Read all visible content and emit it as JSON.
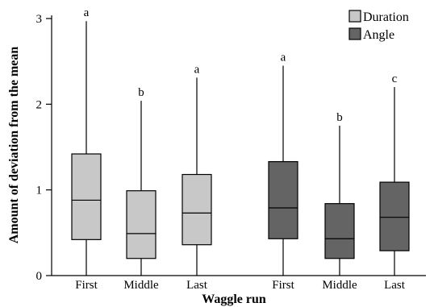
{
  "chart_data": {
    "type": "box",
    "xlabel": "Waggle run",
    "ylabel": "Amount of deviation from the mean",
    "ylim": [
      0,
      3
    ],
    "yticks": [
      0,
      1,
      2,
      3
    ],
    "legend_position": "top-right",
    "colors": {
      "Duration": "#c8c8c8",
      "Angle": "#646464"
    },
    "series": [
      {
        "name": "Duration",
        "boxes": [
          {
            "category": "First",
            "min": 0.0,
            "q1": 0.42,
            "median": 0.88,
            "q3": 1.42,
            "max": 2.97,
            "letter": "a"
          },
          {
            "category": "Middle",
            "min": 0.0,
            "q1": 0.2,
            "median": 0.49,
            "q3": 0.99,
            "max": 2.04,
            "letter": "b"
          },
          {
            "category": "Last",
            "min": 0.0,
            "q1": 0.36,
            "median": 0.73,
            "q3": 1.18,
            "max": 2.31,
            "letter": "a"
          }
        ]
      },
      {
        "name": "Angle",
        "boxes": [
          {
            "category": "First",
            "min": 0.0,
            "q1": 0.43,
            "median": 0.79,
            "q3": 1.33,
            "max": 2.45,
            "letter": "a"
          },
          {
            "category": "Middle",
            "min": 0.0,
            "q1": 0.2,
            "median": 0.43,
            "q3": 0.84,
            "max": 1.75,
            "letter": "b"
          },
          {
            "category": "Last",
            "min": 0.0,
            "q1": 0.29,
            "median": 0.68,
            "q3": 1.09,
            "max": 2.2,
            "letter": "c"
          }
        ]
      }
    ]
  }
}
